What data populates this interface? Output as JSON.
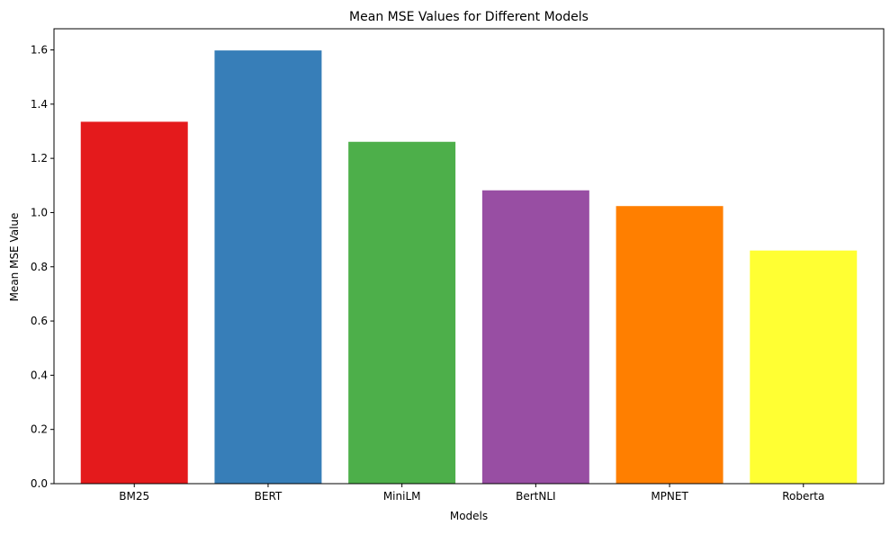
{
  "chart_data": {
    "type": "bar",
    "title": "Mean MSE Values for Different Models",
    "xlabel": "Models",
    "ylabel": "Mean MSE Value",
    "categories": [
      "BM25",
      "BERT",
      "MiniLM",
      "BertNLI",
      "MPNET",
      "Roberta"
    ],
    "values": [
      1.335,
      1.598,
      1.261,
      1.082,
      1.024,
      0.86
    ],
    "colors": [
      "#e41a1c",
      "#377eb8",
      "#4daf4a",
      "#984ea3",
      "#ff7f00",
      "#ffff33"
    ],
    "ylim": [
      0,
      1.678
    ],
    "yticks": [
      0.0,
      0.2,
      0.4,
      0.6,
      0.8,
      1.0,
      1.2,
      1.4,
      1.6
    ],
    "ytick_labels": [
      "0.0",
      "0.2",
      "0.4",
      "0.6",
      "0.8",
      "1.0",
      "1.2",
      "1.4",
      "1.6"
    ],
    "grid": false,
    "legend": "none"
  }
}
